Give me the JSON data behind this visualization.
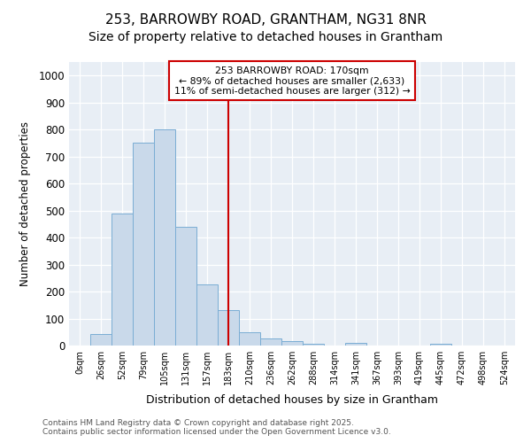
{
  "title": "253, BARROWBY ROAD, GRANTHAM, NG31 8NR",
  "subtitle": "Size of property relative to detached houses in Grantham",
  "xlabel": "Distribution of detached houses by size in Grantham",
  "ylabel": "Number of detached properties",
  "categories": [
    "0sqm",
    "26sqm",
    "52sqm",
    "79sqm",
    "105sqm",
    "131sqm",
    "157sqm",
    "183sqm",
    "210sqm",
    "236sqm",
    "262sqm",
    "288sqm",
    "314sqm",
    "341sqm",
    "367sqm",
    "393sqm",
    "419sqm",
    "445sqm",
    "472sqm",
    "498sqm",
    "524sqm"
  ],
  "values": [
    0,
    42,
    490,
    750,
    800,
    440,
    225,
    130,
    50,
    27,
    15,
    8,
    0,
    10,
    0,
    0,
    0,
    6,
    0,
    0,
    0
  ],
  "bar_color": "#c9d9ea",
  "bar_edge_color": "#7aadd4",
  "vline_x": 7.0,
  "vline_color": "#cc0000",
  "ylim": [
    0,
    1050
  ],
  "yticks": [
    0,
    100,
    200,
    300,
    400,
    500,
    600,
    700,
    800,
    900,
    1000
  ],
  "annotation_text": "253 BARROWBY ROAD: 170sqm\n← 89% of detached houses are smaller (2,633)\n11% of semi-detached houses are larger (312) →",
  "annotation_box_color": "#ffffff",
  "annotation_border_color": "#cc0000",
  "footer_line1": "Contains HM Land Registry data © Crown copyright and database right 2025.",
  "footer_line2": "Contains public sector information licensed under the Open Government Licence v3.0.",
  "bg_color": "#ffffff",
  "plot_bg_color": "#e8eef5",
  "grid_color": "#ffffff",
  "title_fontsize": 11,
  "subtitle_fontsize": 10
}
